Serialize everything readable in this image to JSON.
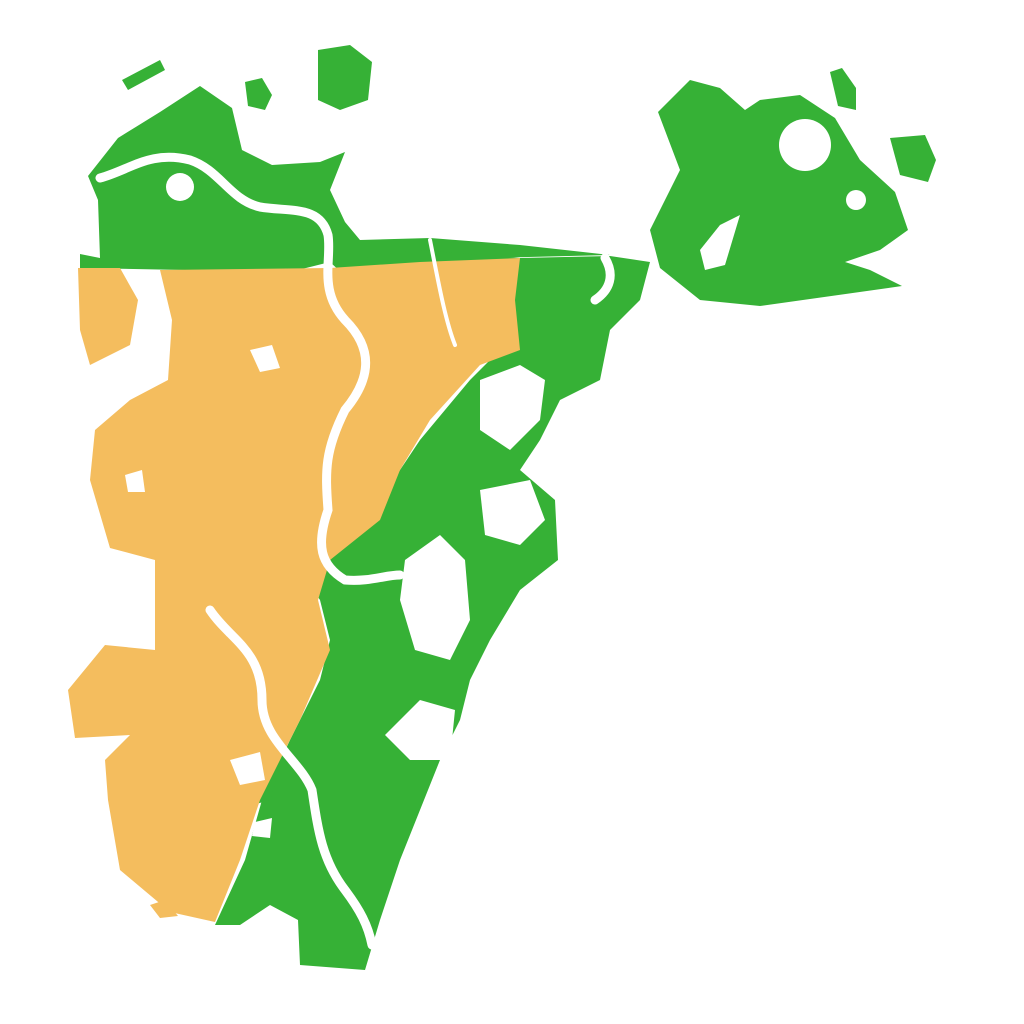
{
  "map": {
    "colors": {
      "background": "#ffffff",
      "green_zone": "#36b136",
      "orange_zone": "#f4bd5e",
      "water_river": "#ffffff"
    },
    "regions": [
      "green-zone",
      "orange-zone"
    ],
    "labels": []
  }
}
